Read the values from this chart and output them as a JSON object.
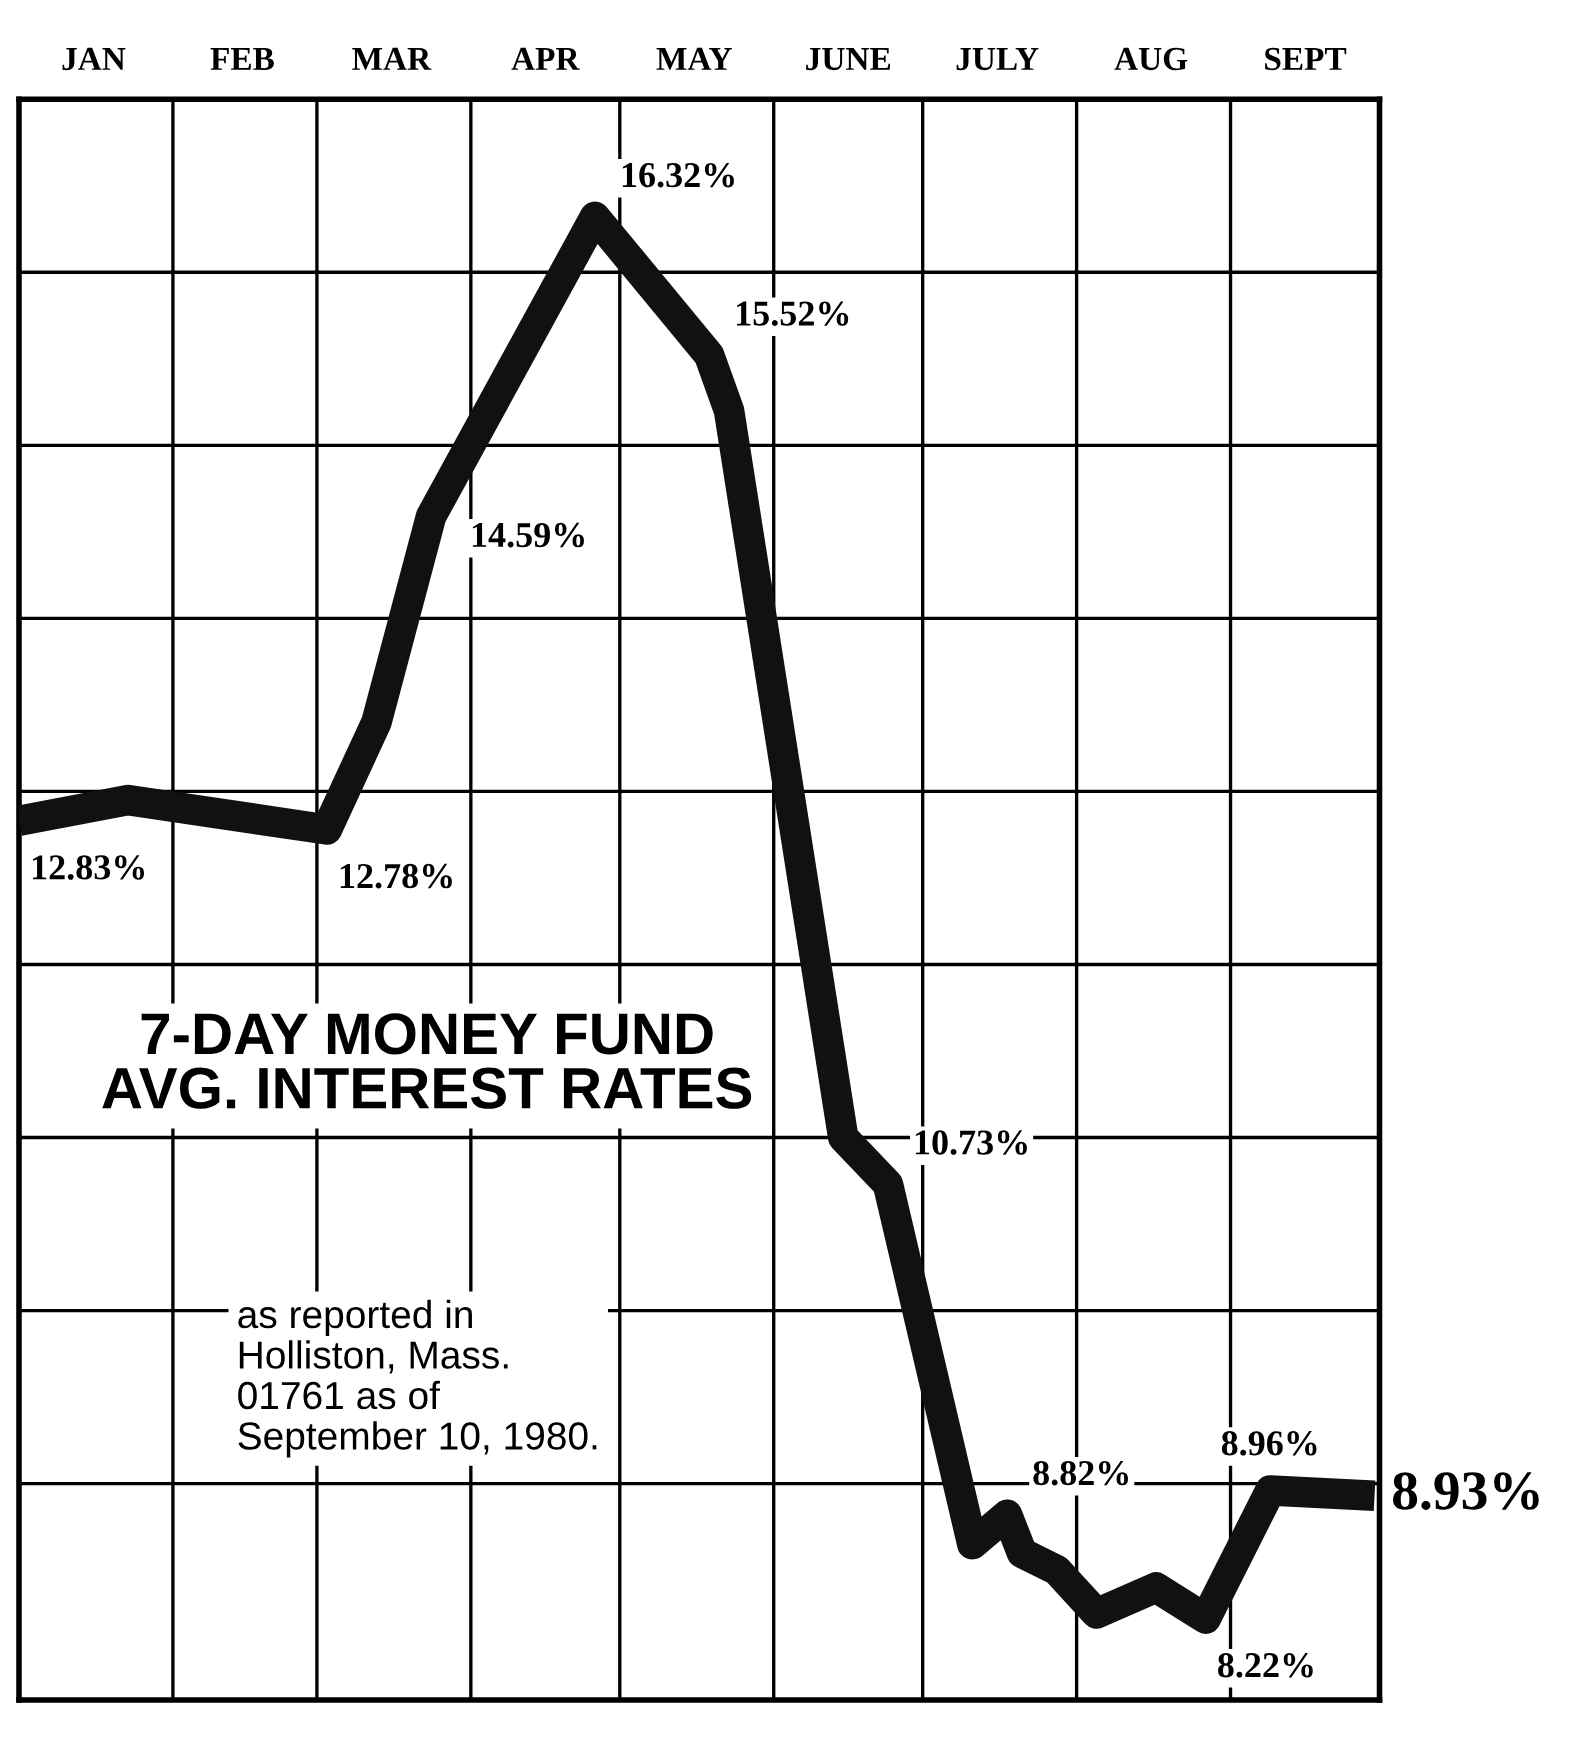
{
  "chart_data": {
    "type": "line",
    "title": "7-DAY MONEY FUND\nAVG. INTEREST RATES",
    "annotations": [
      "as reported in\nHolliston, Mass.\n01761 as of\nSeptember 10, 1980."
    ],
    "x": [
      "1980-01-01",
      "1980-01-23",
      "1980-03-03",
      "1980-03-13",
      "1980-03-24",
      "1980-04-26",
      "1980-05-19",
      "1980-05-23",
      "1980-06-15",
      "1980-06-24",
      "1980-07-11",
      "1980-07-18",
      "1980-07-21",
      "1980-07-28",
      "1980-08-05",
      "1980-08-17",
      "1980-08-27",
      "1980-09-09",
      "1980-09-30"
    ],
    "series": [
      {
        "color": "#111111",
        "values": [
          12.83,
          12.95,
          12.78,
          13.4,
          14.59,
          16.32,
          15.52,
          15.2,
          11.0,
          10.73,
          8.65,
          8.82,
          8.6,
          8.5,
          8.25,
          8.4,
          8.22,
          8.96,
          8.93
        ],
        "value_labels": [
          "12.83%",
          null,
          "12.78%",
          null,
          "14.59%",
          "16.32%",
          "15.52%",
          null,
          null,
          "10.73%",
          null,
          "8.82%",
          null,
          null,
          null,
          null,
          "8.22%",
          "8.96%",
          "8.93%"
        ]
      }
    ],
    "xlim": [
      "1980-01-01",
      "1980-10-01"
    ],
    "xticks": [
      {
        "value": "1980-01-16",
        "label": "JAN"
      },
      {
        "value": "1980-02-15",
        "label": "FEB"
      },
      {
        "value": "1980-03-16",
        "label": "MAR"
      },
      {
        "value": "1980-04-16",
        "label": "APR"
      },
      {
        "value": "1980-05-16",
        "label": "MAY"
      },
      {
        "value": "1980-06-16",
        "label": "JUNE"
      },
      {
        "value": "1980-07-16",
        "label": "JULY"
      },
      {
        "value": "1980-08-16",
        "label": "AUG"
      },
      {
        "value": "1980-09-16",
        "label": "SEPT"
      },
      {
        "value": "1980-02-01",
        "label": null
      },
      {
        "value": "1980-03-01",
        "label": null
      },
      {
        "value": "1980-04-01",
        "label": null
      },
      {
        "value": "1980-05-01",
        "label": null
      },
      {
        "value": "1980-06-01",
        "label": null
      },
      {
        "value": "1980-07-01",
        "label": null
      },
      {
        "value": "1980-08-01",
        "label": null
      },
      {
        "value": "1980-09-01",
        "label": null
      }
    ],
    "ylim": [
      7.75,
      17.0
    ],
    "yticks": [
      {
        "value": 9,
        "label": null
      },
      {
        "value": 10,
        "label": null
      },
      {
        "value": 11,
        "label": null
      },
      {
        "value": 12,
        "label": null
      },
      {
        "value": 13,
        "label": null
      },
      {
        "value": 14,
        "label": null
      },
      {
        "value": 15,
        "label": null
      },
      {
        "value": 16,
        "label": null
      }
    ],
    "grid": true,
    "tick_labels": "x",
    "line_style": "solid",
    "marker": "none",
    "legend": false
  }
}
